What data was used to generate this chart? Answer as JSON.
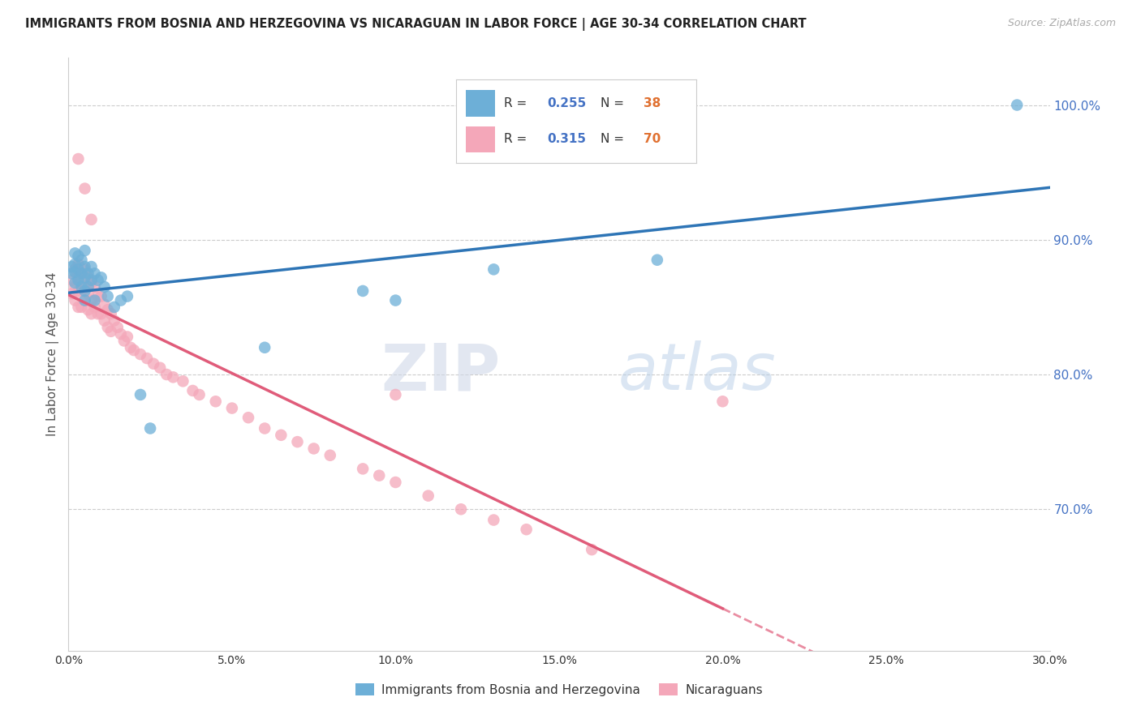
{
  "title": "IMMIGRANTS FROM BOSNIA AND HERZEGOVINA VS NICARAGUAN IN LABOR FORCE | AGE 30-34 CORRELATION CHART",
  "source": "Source: ZipAtlas.com",
  "ylabel_left": "In Labor Force | Age 30-34",
  "xlim": [
    0.0,
    0.3
  ],
  "ylim": [
    0.595,
    1.035
  ],
  "xticks": [
    0.0,
    0.05,
    0.1,
    0.15,
    0.2,
    0.25,
    0.3
  ],
  "xtick_labels": [
    "0.0%",
    "5.0%",
    "10.0%",
    "15.0%",
    "20.0%",
    "25.0%",
    "30.0%"
  ],
  "yticks_right": [
    0.7,
    0.8,
    0.9,
    1.0
  ],
  "ytick_labels_right": [
    "70.0%",
    "80.0%",
    "90.0%",
    "100.0%"
  ],
  "bosnia_color": "#6dafd7",
  "nicaragua_color": "#f4a7b9",
  "legend_label_blue": "Immigrants from Bosnia and Herzegovina",
  "legend_label_pink": "Nicaraguans",
  "bosnia_x": [
    0.001,
    0.001,
    0.002,
    0.002,
    0.002,
    0.002,
    0.003,
    0.003,
    0.003,
    0.004,
    0.004,
    0.004,
    0.005,
    0.005,
    0.005,
    0.005,
    0.005,
    0.006,
    0.006,
    0.007,
    0.007,
    0.008,
    0.008,
    0.009,
    0.01,
    0.011,
    0.012,
    0.014,
    0.016,
    0.018,
    0.022,
    0.025,
    0.06,
    0.09,
    0.1,
    0.13,
    0.18,
    0.29
  ],
  "bosnia_y": [
    0.88,
    0.875,
    0.89,
    0.882,
    0.876,
    0.868,
    0.888,
    0.878,
    0.87,
    0.885,
    0.875,
    0.865,
    0.892,
    0.88,
    0.872,
    0.862,
    0.855,
    0.875,
    0.865,
    0.88,
    0.87,
    0.875,
    0.855,
    0.87,
    0.872,
    0.865,
    0.858,
    0.85,
    0.855,
    0.858,
    0.785,
    0.76,
    0.82,
    0.862,
    0.855,
    0.878,
    0.885,
    1.0
  ],
  "nicaragua_x": [
    0.001,
    0.001,
    0.002,
    0.002,
    0.002,
    0.003,
    0.003,
    0.003,
    0.003,
    0.004,
    0.004,
    0.004,
    0.005,
    0.005,
    0.005,
    0.006,
    0.006,
    0.006,
    0.007,
    0.007,
    0.007,
    0.008,
    0.008,
    0.009,
    0.009,
    0.01,
    0.01,
    0.011,
    0.011,
    0.012,
    0.012,
    0.013,
    0.013,
    0.014,
    0.015,
    0.016,
    0.017,
    0.018,
    0.019,
    0.02,
    0.022,
    0.024,
    0.026,
    0.028,
    0.03,
    0.032,
    0.035,
    0.038,
    0.04,
    0.045,
    0.05,
    0.055,
    0.06,
    0.065,
    0.07,
    0.075,
    0.08,
    0.09,
    0.095,
    0.1,
    0.11,
    0.12,
    0.13,
    0.14,
    0.16,
    0.2,
    0.003,
    0.005,
    0.007,
    0.1
  ],
  "nicaragua_y": [
    0.87,
    0.86,
    0.878,
    0.865,
    0.855,
    0.882,
    0.872,
    0.862,
    0.85,
    0.875,
    0.862,
    0.85,
    0.878,
    0.865,
    0.855,
    0.872,
    0.86,
    0.848,
    0.868,
    0.855,
    0.845,
    0.865,
    0.85,
    0.858,
    0.845,
    0.858,
    0.845,
    0.852,
    0.84,
    0.848,
    0.835,
    0.845,
    0.832,
    0.84,
    0.835,
    0.83,
    0.825,
    0.828,
    0.82,
    0.818,
    0.815,
    0.812,
    0.808,
    0.805,
    0.8,
    0.798,
    0.795,
    0.788,
    0.785,
    0.78,
    0.775,
    0.768,
    0.76,
    0.755,
    0.75,
    0.745,
    0.74,
    0.73,
    0.725,
    0.72,
    0.71,
    0.7,
    0.692,
    0.685,
    0.67,
    0.78,
    0.96,
    0.938,
    0.915,
    0.785
  ],
  "watermark_zip": "ZIP",
  "watermark_atlas": "atlas",
  "grid_color": "#cccccc",
  "background_color": "#ffffff",
  "title_color": "#222222",
  "axis_label_color": "#555555",
  "trend_blue_color": "#2e75b6",
  "trend_pink_color": "#e05c7a",
  "right_axis_color": "#4472c4",
  "legend_R_blue": "0.255",
  "legend_N_blue": "38",
  "legend_R_pink": "0.315",
  "legend_N_pink": "70",
  "legend_value_color": "#4472c4",
  "legend_N_value_color": "#e07030"
}
